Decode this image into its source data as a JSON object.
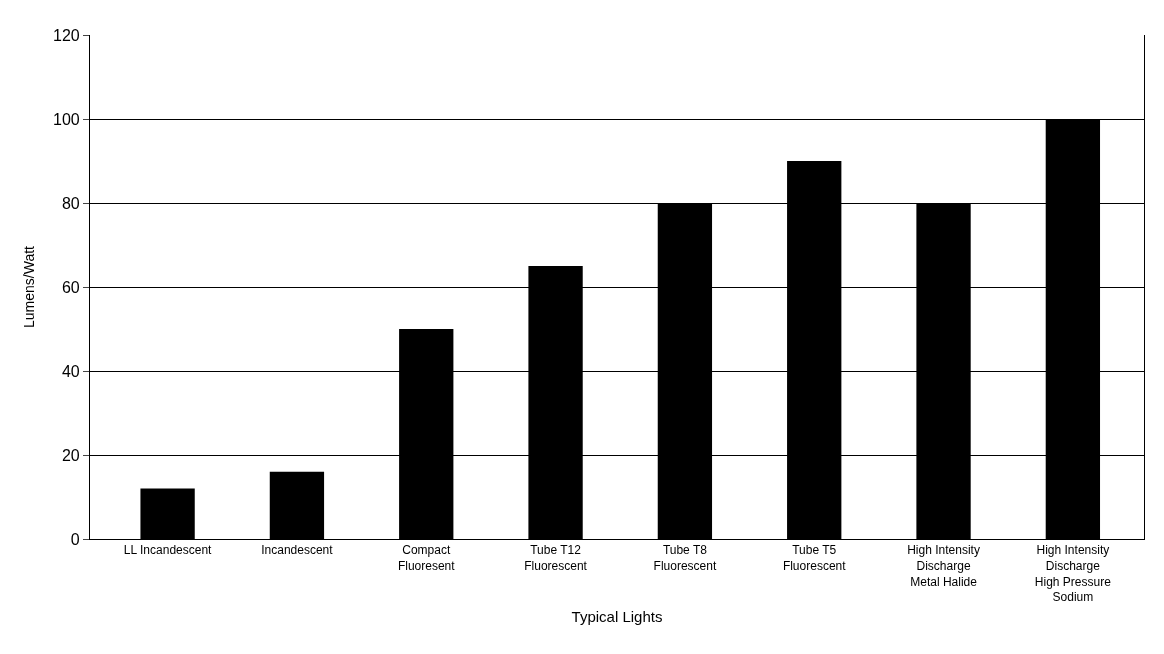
{
  "chart_data": {
    "type": "bar",
    "xlabel": "Typical Lights",
    "ylabel": "Lumens/Watt",
    "categories": [
      "LL Incandescent",
      "Incandescent",
      "Compact\nFluoresent",
      "Tube T12\nFluorescent",
      "Tube T8\nFluorescent",
      "Tube T5\nFluorescent",
      "High Intensity\nDischarge\nMetal Halide",
      "High Intensity\nDischarge\nHigh Pressure\nSodium"
    ],
    "values": [
      12,
      16,
      50,
      65,
      80,
      90,
      80,
      100
    ],
    "color": "#000000",
    "ylim": [
      0,
      120
    ],
    "yticks": [
      0,
      20,
      40,
      60,
      80,
      100,
      120
    ],
    "grid": "y",
    "legend": false
  }
}
